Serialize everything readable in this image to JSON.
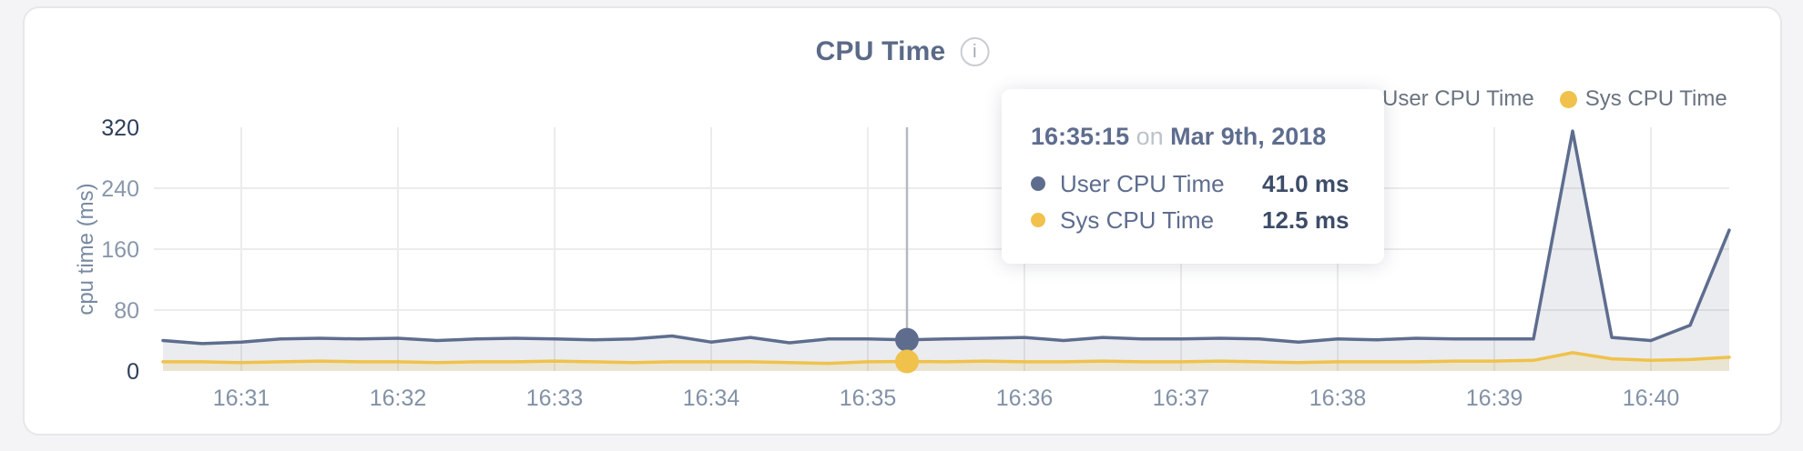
{
  "header": {
    "title": "CPU Time",
    "info_icon": "i"
  },
  "legend": {
    "items": [
      {
        "label": "User CPU Time",
        "color": "#5e6d8e"
      },
      {
        "label": "Sys CPU Time",
        "color": "#f0c24b"
      }
    ]
  },
  "tooltip": {
    "time": "16:35:15",
    "separator": "on",
    "date": "Mar 9th, 2018",
    "rows": [
      {
        "label": "User CPU Time",
        "value": "41.0 ms",
        "color": "#5e6d8e"
      },
      {
        "label": "Sys CPU Time",
        "value": "12.5 ms",
        "color": "#f0c24b"
      }
    ]
  },
  "chart_data": {
    "type": "line",
    "title": "CPU Time",
    "xlabel": "",
    "ylabel": "cpu time (ms)",
    "ylim": [
      0,
      320
    ],
    "y_ticks": [
      0,
      80,
      160,
      240,
      320
    ],
    "x_tick_labels": [
      "16:31",
      "16:32",
      "16:33",
      "16:34",
      "16:35",
      "16:36",
      "16:37",
      "16:38",
      "16:39",
      "16:40"
    ],
    "x_start": "16:30:30",
    "x_step_seconds": 15,
    "grid": true,
    "legend_position": "top-right",
    "series": [
      {
        "name": "User CPU Time",
        "color": "#5e6d8e",
        "values": [
          40,
          36,
          38,
          42,
          43,
          42,
          43,
          40,
          42,
          43,
          42,
          41,
          42,
          46,
          38,
          44,
          37,
          42,
          42,
          41,
          42,
          43,
          44,
          40,
          44,
          42,
          42,
          43,
          42,
          38,
          42,
          41,
          43,
          42,
          42,
          42,
          315,
          44,
          40,
          60,
          185
        ]
      },
      {
        "name": "Sys CPU Time",
        "color": "#f0c24b",
        "values": [
          12,
          12,
          11,
          12,
          13,
          12,
          12,
          11,
          12,
          12,
          13,
          12,
          11,
          12,
          12,
          12,
          11,
          10,
          12,
          12.5,
          12,
          13,
          12,
          12,
          13,
          12,
          12,
          13,
          12,
          11,
          12,
          12,
          12,
          13,
          13,
          14,
          24,
          16,
          14,
          15,
          18
        ]
      }
    ],
    "hover_marker": {
      "time": "16:35:15",
      "index": 19,
      "user_value_ms": 41.0,
      "sys_value_ms": 12.5
    }
  }
}
